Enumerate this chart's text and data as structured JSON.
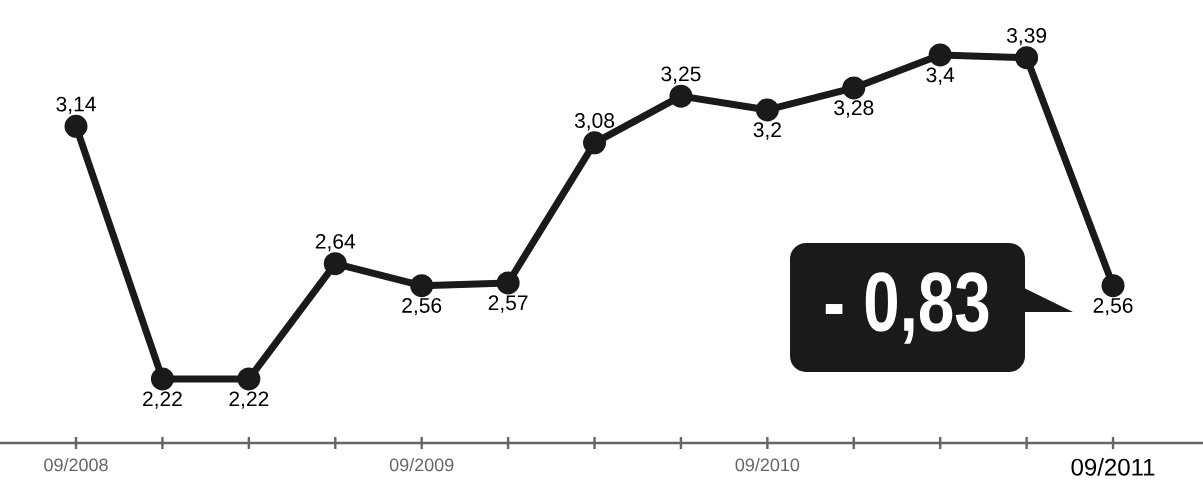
{
  "chart_data": {
    "type": "line",
    "categories": [
      "09/2008",
      null,
      null,
      null,
      "09/2009",
      null,
      null,
      null,
      "09/2010",
      null,
      null,
      null,
      "09/2011"
    ],
    "values": [
      3.14,
      2.22,
      2.22,
      2.64,
      2.56,
      2.57,
      3.08,
      3.25,
      3.2,
      3.28,
      3.4,
      3.39,
      2.56
    ],
    "value_labels": [
      "3,14",
      "2,22",
      "2,22",
      "2,64",
      "2,56",
      "2,57",
      "3,08",
      "3,25",
      "3,2",
      "3,28",
      "3,4",
      "3,39",
      "2,56"
    ],
    "color": "#1a1a1a",
    "marker": "circle",
    "annotations": [
      "- 0,83"
    ]
  }
}
